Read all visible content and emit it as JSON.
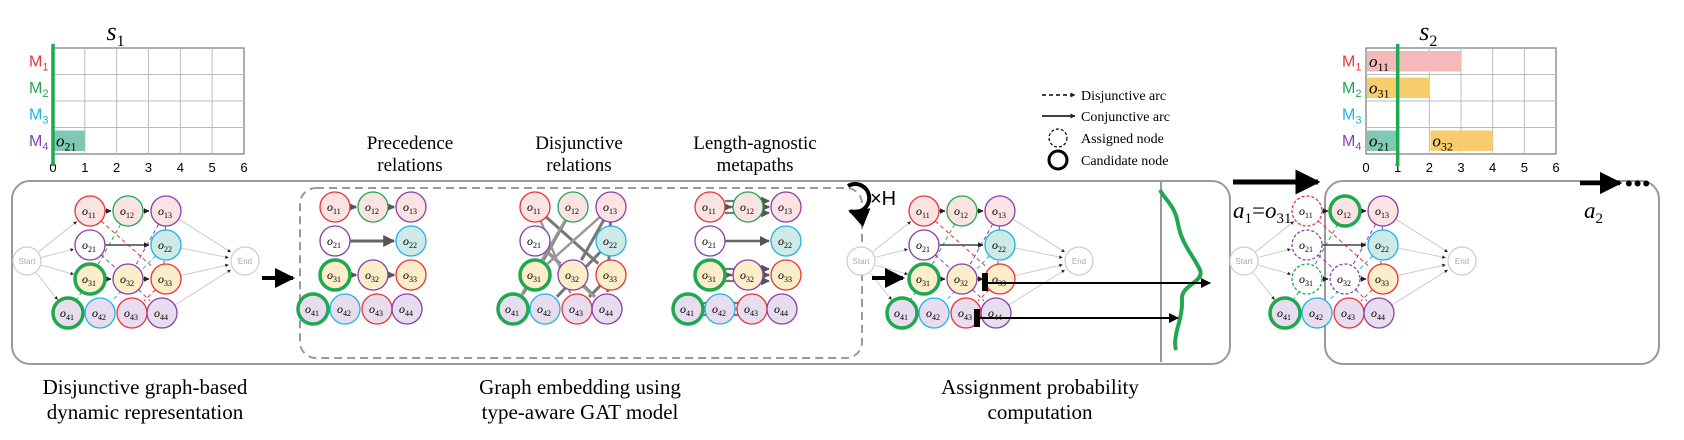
{
  "gantt_left": {
    "title": "s",
    "title_sub": "1",
    "machines": [
      {
        "label": "M",
        "sub": "1",
        "color": "#e8333a"
      },
      {
        "label": "M",
        "sub": "2",
        "color": "#1fa84f"
      },
      {
        "label": "M",
        "sub": "3",
        "color": "#1db4e6"
      },
      {
        "label": "M",
        "sub": "4",
        "color": "#8b3fa8"
      }
    ],
    "ticks": [
      "0",
      "1",
      "2",
      "3",
      "4",
      "5",
      "6"
    ],
    "bars": [
      {
        "machine": 4,
        "start": 0,
        "end": 1,
        "color": "#7fc8b4",
        "label": "o",
        "label_sub": "21"
      }
    ],
    "time_marker": 0
  },
  "gantt_right": {
    "title": "s",
    "title_sub": "2",
    "machines": [
      {
        "label": "M",
        "sub": "1",
        "color": "#e8333a"
      },
      {
        "label": "M",
        "sub": "2",
        "color": "#1fa84f"
      },
      {
        "label": "M",
        "sub": "3",
        "color": "#1db4e6"
      },
      {
        "label": "M",
        "sub": "4",
        "color": "#8b3fa8"
      }
    ],
    "ticks": [
      "0",
      "1",
      "2",
      "3",
      "4",
      "5",
      "6"
    ],
    "bars": [
      {
        "machine": 1,
        "start": 0,
        "end": 3,
        "color": "#f6b9b9",
        "label": "o",
        "label_sub": "11"
      },
      {
        "machine": 2,
        "start": 0,
        "end": 2,
        "color": "#f8cd6e",
        "label": "o",
        "label_sub": "31"
      },
      {
        "machine": 4,
        "start": 0,
        "end": 1,
        "color": "#7fc8b4",
        "label": "o",
        "label_sub": "21"
      },
      {
        "machine": 4,
        "start": 2,
        "end": 4,
        "color": "#f8cd6e",
        "label": "o",
        "label_sub": "32"
      }
    ],
    "time_marker": 1
  },
  "legend": {
    "disjunctive": "Disjunctive arc",
    "conjunctive": "Conjunctive arc",
    "assigned": "Assigned node",
    "candidate": "Candidate node"
  },
  "headers": {
    "precedence_1": "Precedence",
    "precedence_2": "relations",
    "disjunctive_1": "Disjunctive",
    "disjunctive_2": "relations",
    "metapath_1": "Length-agnostic",
    "metapath_2": "metapaths"
  },
  "repeat_label": "×H",
  "captions": {
    "left_1": "Disjunctive graph-based",
    "left_2": "dynamic representation",
    "mid_1": "Graph embedding using",
    "mid_2": "type-aware GAT model",
    "right_1": "Assignment probability",
    "right_2": "computation"
  },
  "actions": {
    "a1_var": "a",
    "a1_sub": "1",
    "a1_eq": "=",
    "a1_val": "o",
    "a1_val_sub": "31",
    "a2_var": "a",
    "a2_sub": "2",
    "ellipsis": "•••"
  },
  "node_labels": {
    "start": "Start",
    "end": "End",
    "o11": "11",
    "o12": "12",
    "o13": "13",
    "o21": "21",
    "o22": "22",
    "o31": "31",
    "o32": "32",
    "o33": "33",
    "o41": "41",
    "o42": "42",
    "o43": "43",
    "o44": "44"
  },
  "colors": {
    "m1": "#e8333a",
    "m2": "#1fa84f",
    "m3": "#1db4e6",
    "m4": "#8b3fa8",
    "candidate": "#1fa84f",
    "fill_o1": "#fbe3e3",
    "fill_o2": "#cfe9e6",
    "fill_o3": "#fbeec8",
    "fill_o4": "#e7ddef"
  }
}
